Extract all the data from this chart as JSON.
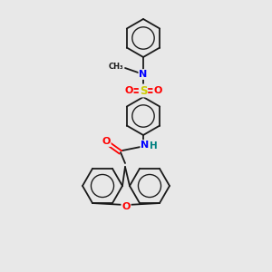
{
  "background_color": "#e8e8e8",
  "bond_color": "#1a1a1a",
  "atom_colors": {
    "N": "#0000ff",
    "O": "#ff0000",
    "S": "#cccc00",
    "H": "#008080",
    "C": "#1a1a1a"
  },
  "figsize": [
    3.0,
    3.0
  ],
  "dpi": 100,
  "lw": 1.3,
  "ring_r": 20,
  "benz_r": 18
}
